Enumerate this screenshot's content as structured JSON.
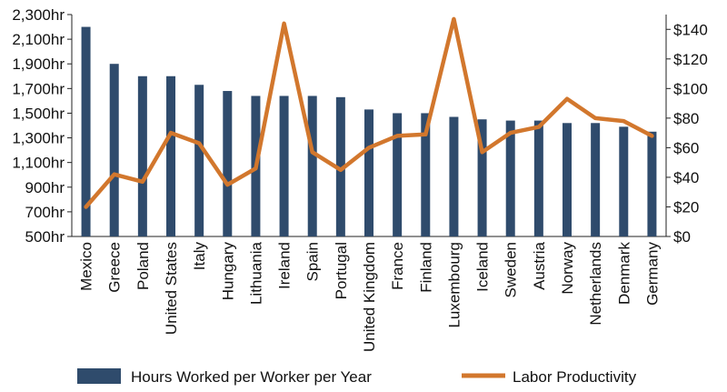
{
  "chart_data": {
    "type": "bar+line",
    "categories": [
      "Mexico",
      "Greece",
      "Poland",
      "United States",
      "Italy",
      "Hungary",
      "Lithuania",
      "Ireland",
      "Spain",
      "Portugal",
      "United Kingdom",
      "France",
      "Finland",
      "Luxembourg",
      "Iceland",
      "Sweden",
      "Austria",
      "Norway",
      "Netherlands",
      "Denmark",
      "Germany"
    ],
    "series": [
      {
        "name": "Hours Worked per Worker per Year",
        "type": "bar",
        "axis": "left",
        "color": "#2f4b6c",
        "values": [
          2200,
          1900,
          1800,
          1800,
          1730,
          1680,
          1640,
          1640,
          1640,
          1630,
          1530,
          1500,
          1500,
          1470,
          1450,
          1440,
          1440,
          1420,
          1420,
          1390,
          1350
        ]
      },
      {
        "name": "Labor Productivity",
        "type": "line",
        "axis": "right",
        "color": "#d2772d",
        "values": [
          20,
          42,
          37,
          70,
          63,
          35,
          46,
          144,
          57,
          45,
          60,
          68,
          69,
          147,
          57,
          70,
          74,
          93,
          80,
          78,
          68
        ]
      }
    ],
    "y_left": {
      "ylim": [
        500,
        2300
      ],
      "ticks": [
        500,
        700,
        900,
        1100,
        1300,
        1500,
        1700,
        1900,
        2100,
        2300
      ],
      "tick_labels": [
        "500hr",
        "700hr",
        "900hr",
        "1,100hr",
        "1,300hr",
        "1,500hr",
        "1,700hr",
        "1,900hr",
        "2,100hr",
        "2,300hr"
      ]
    },
    "y_right": {
      "ylim": [
        0,
        150
      ],
      "ticks": [
        0,
        20,
        40,
        60,
        80,
        100,
        120,
        140
      ],
      "tick_labels": [
        "$0",
        "$20",
        "$40",
        "$60",
        "$80",
        "$100",
        "$120",
        "$140"
      ]
    },
    "grid": false,
    "legend_position": "bottom"
  }
}
